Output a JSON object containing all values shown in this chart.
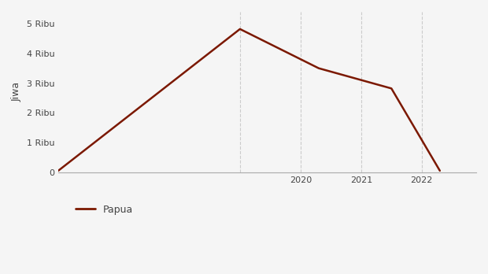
{
  "x": [
    2016,
    2019,
    2020.3,
    2021.5,
    2022.3
  ],
  "y": [
    50,
    4820,
    3500,
    2820,
    50
  ],
  "line_color": "#7B1800",
  "line_width": 1.8,
  "ylabel": "Jiwa",
  "yticks": [
    0,
    1000,
    2000,
    3000,
    4000,
    5000
  ],
  "ytick_labels": [
    "0",
    "1 Ribu",
    "2 Ribu",
    "3 Ribu",
    "4 Ribu",
    "5 Ribu"
  ],
  "xticks": [
    2019,
    2020,
    2021,
    2022
  ],
  "xtick_labels": [
    "",
    "2020",
    "2021",
    "2022"
  ],
  "xlim": [
    2016,
    2022.9
  ],
  "ylim": [
    0,
    5400
  ],
  "grid_color": "#cccccc",
  "background_color": "#f5f5f5",
  "legend_label": "Papua",
  "legend_line_color": "#7B1800"
}
